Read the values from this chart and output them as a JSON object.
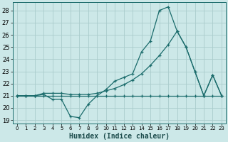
{
  "xlabel": "Humidex (Indice chaleur)",
  "bg_color": "#cce8e8",
  "grid_color": "#aacccc",
  "line_color": "#1a6b6b",
  "xlim": [
    -0.5,
    23.5
  ],
  "ylim": [
    18.7,
    28.7
  ],
  "xticks": [
    0,
    1,
    2,
    3,
    4,
    5,
    6,
    7,
    8,
    9,
    10,
    11,
    12,
    13,
    14,
    15,
    16,
    17,
    18,
    19,
    20,
    21,
    22,
    23
  ],
  "yticks": [
    19,
    20,
    21,
    22,
    23,
    24,
    25,
    26,
    27,
    28
  ],
  "line1_x": [
    0,
    1,
    2,
    3,
    4,
    5,
    6,
    7,
    8,
    9,
    10,
    11,
    12,
    13,
    14,
    15,
    16,
    17,
    18,
    19,
    20,
    21,
    22,
    23
  ],
  "line1_y": [
    21.0,
    21.0,
    21.0,
    21.1,
    20.7,
    20.7,
    19.3,
    19.2,
    20.3,
    21.0,
    21.5,
    22.2,
    22.5,
    22.8,
    24.6,
    25.5,
    28.0,
    28.3,
    26.3,
    25.0,
    23.0,
    21.0,
    22.7,
    21.0
  ],
  "line2_x": [
    0,
    1,
    2,
    3,
    4,
    5,
    6,
    7,
    8,
    9,
    10,
    11,
    12,
    13,
    14,
    15,
    16,
    17,
    18,
    19,
    20,
    21,
    22,
    23
  ],
  "line2_y": [
    21.0,
    21.0,
    21.0,
    21.2,
    21.2,
    21.2,
    21.1,
    21.1,
    21.1,
    21.2,
    21.4,
    21.6,
    21.9,
    22.3,
    22.8,
    23.5,
    24.3,
    25.2,
    26.3,
    25.0,
    23.0,
    21.0,
    22.7,
    21.0
  ],
  "line3_x": [
    0,
    1,
    2,
    3,
    4,
    5,
    6,
    7,
    8,
    9,
    10,
    11,
    12,
    13,
    14,
    15,
    16,
    17,
    18,
    19,
    20,
    21,
    22,
    23
  ],
  "line3_y": [
    21.0,
    21.0,
    21.0,
    21.0,
    21.0,
    21.0,
    21.0,
    21.0,
    21.0,
    21.0,
    21.0,
    21.0,
    21.0,
    21.0,
    21.0,
    21.0,
    21.0,
    21.0,
    21.0,
    21.0,
    21.0,
    21.0,
    21.0,
    21.0
  ]
}
